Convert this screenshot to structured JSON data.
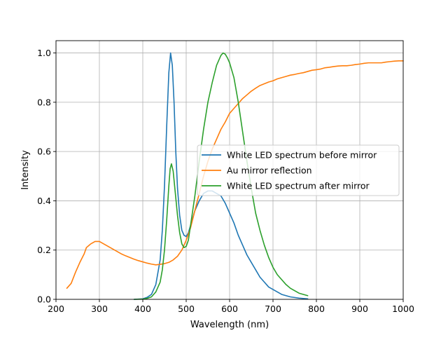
{
  "chart_data": {
    "type": "line",
    "title": "",
    "xlabel": "Wavelength (nm)",
    "ylabel": "Intensity",
    "xlim": [
      200,
      1000
    ],
    "ylim": [
      0,
      1.05
    ],
    "xticks": [
      200,
      300,
      400,
      500,
      600,
      700,
      800,
      900,
      1000
    ],
    "xtick_labels": [
      "200",
      "300",
      "400",
      "500",
      "600",
      "700",
      "800",
      "900",
      "1000"
    ],
    "yticks": [
      0,
      0.2,
      0.4,
      0.6,
      0.8,
      1.0
    ],
    "ytick_labels": [
      "0.0",
      "0.2",
      "0.4",
      "0.6",
      "0.8",
      "1.0"
    ],
    "grid": true,
    "legend_position": "center-right",
    "series": [
      {
        "name": "White LED spectrum before mirror",
        "color": "#1f77b4",
        "points": [
          [
            380,
            0
          ],
          [
            400,
            0.002
          ],
          [
            410,
            0.008
          ],
          [
            420,
            0.02
          ],
          [
            430,
            0.06
          ],
          [
            440,
            0.16
          ],
          [
            445,
            0.28
          ],
          [
            450,
            0.46
          ],
          [
            455,
            0.7
          ],
          [
            460,
            0.92
          ],
          [
            464,
            1.0
          ],
          [
            468,
            0.95
          ],
          [
            472,
            0.8
          ],
          [
            476,
            0.6
          ],
          [
            480,
            0.45
          ],
          [
            485,
            0.34
          ],
          [
            490,
            0.28
          ],
          [
            495,
            0.26
          ],
          [
            500,
            0.255
          ],
          [
            505,
            0.27
          ],
          [
            510,
            0.3
          ],
          [
            520,
            0.36
          ],
          [
            530,
            0.4
          ],
          [
            540,
            0.43
          ],
          [
            550,
            0.44
          ],
          [
            560,
            0.44
          ],
          [
            570,
            0.43
          ],
          [
            580,
            0.42
          ],
          [
            590,
            0.39
          ],
          [
            600,
            0.35
          ],
          [
            610,
            0.31
          ],
          [
            620,
            0.26
          ],
          [
            630,
            0.22
          ],
          [
            640,
            0.18
          ],
          [
            650,
            0.15
          ],
          [
            660,
            0.12
          ],
          [
            670,
            0.09
          ],
          [
            680,
            0.07
          ],
          [
            690,
            0.05
          ],
          [
            700,
            0.04
          ],
          [
            710,
            0.03
          ],
          [
            720,
            0.02
          ],
          [
            740,
            0.01
          ],
          [
            760,
            0.005
          ],
          [
            780,
            0.002
          ]
        ]
      },
      {
        "name": "Au mirror reflection",
        "color": "#ff7f0e",
        "points": [
          [
            225,
            0.045
          ],
          [
            235,
            0.065
          ],
          [
            245,
            0.11
          ],
          [
            255,
            0.15
          ],
          [
            265,
            0.185
          ],
          [
            270,
            0.21
          ],
          [
            280,
            0.225
          ],
          [
            290,
            0.235
          ],
          [
            300,
            0.235
          ],
          [
            310,
            0.225
          ],
          [
            320,
            0.215
          ],
          [
            330,
            0.205
          ],
          [
            340,
            0.195
          ],
          [
            350,
            0.185
          ],
          [
            360,
            0.177
          ],
          [
            370,
            0.17
          ],
          [
            380,
            0.163
          ],
          [
            390,
            0.157
          ],
          [
            400,
            0.152
          ],
          [
            410,
            0.147
          ],
          [
            420,
            0.143
          ],
          [
            430,
            0.14
          ],
          [
            440,
            0.142
          ],
          [
            450,
            0.145
          ],
          [
            460,
            0.15
          ],
          [
            470,
            0.16
          ],
          [
            480,
            0.175
          ],
          [
            490,
            0.2
          ],
          [
            500,
            0.24
          ],
          [
            510,
            0.29
          ],
          [
            520,
            0.36
          ],
          [
            530,
            0.43
          ],
          [
            540,
            0.5
          ],
          [
            550,
            0.56
          ],
          [
            560,
            0.61
          ],
          [
            570,
            0.65
          ],
          [
            580,
            0.69
          ],
          [
            590,
            0.72
          ],
          [
            600,
            0.755
          ],
          [
            610,
            0.775
          ],
          [
            620,
            0.795
          ],
          [
            630,
            0.815
          ],
          [
            640,
            0.83
          ],
          [
            650,
            0.845
          ],
          [
            660,
            0.857
          ],
          [
            670,
            0.868
          ],
          [
            680,
            0.875
          ],
          [
            690,
            0.882
          ],
          [
            700,
            0.887
          ],
          [
            710,
            0.895
          ],
          [
            720,
            0.9
          ],
          [
            730,
            0.905
          ],
          [
            740,
            0.91
          ],
          [
            750,
            0.913
          ],
          [
            760,
            0.917
          ],
          [
            770,
            0.92
          ],
          [
            780,
            0.925
          ],
          [
            790,
            0.93
          ],
          [
            800,
            0.932
          ],
          [
            810,
            0.935
          ],
          [
            820,
            0.94
          ],
          [
            830,
            0.942
          ],
          [
            840,
            0.945
          ],
          [
            850,
            0.947
          ],
          [
            860,
            0.948
          ],
          [
            870,
            0.948
          ],
          [
            880,
            0.95
          ],
          [
            890,
            0.953
          ],
          [
            900,
            0.955
          ],
          [
            910,
            0.958
          ],
          [
            920,
            0.96
          ],
          [
            930,
            0.96
          ],
          [
            940,
            0.96
          ],
          [
            950,
            0.96
          ],
          [
            960,
            0.963
          ],
          [
            970,
            0.965
          ],
          [
            980,
            0.967
          ],
          [
            990,
            0.968
          ],
          [
            1000,
            0.968
          ]
        ]
      },
      {
        "name": "White LED spectrum after mirror",
        "color": "#2ca02c",
        "points": [
          [
            380,
            0
          ],
          [
            400,
            0.001
          ],
          [
            410,
            0.004
          ],
          [
            420,
            0.01
          ],
          [
            430,
            0.03
          ],
          [
            440,
            0.07
          ],
          [
            445,
            0.12
          ],
          [
            450,
            0.2
          ],
          [
            455,
            0.32
          ],
          [
            460,
            0.46
          ],
          [
            463,
            0.53
          ],
          [
            466,
            0.55
          ],
          [
            470,
            0.52
          ],
          [
            475,
            0.43
          ],
          [
            480,
            0.34
          ],
          [
            485,
            0.27
          ],
          [
            490,
            0.225
          ],
          [
            495,
            0.21
          ],
          [
            500,
            0.215
          ],
          [
            505,
            0.24
          ],
          [
            510,
            0.3
          ],
          [
            520,
            0.42
          ],
          [
            530,
            0.56
          ],
          [
            540,
            0.69
          ],
          [
            550,
            0.8
          ],
          [
            560,
            0.88
          ],
          [
            570,
            0.95
          ],
          [
            580,
            0.99
          ],
          [
            585,
            1.0
          ],
          [
            590,
            0.995
          ],
          [
            595,
            0.98
          ],
          [
            600,
            0.96
          ],
          [
            610,
            0.9
          ],
          [
            620,
            0.8
          ],
          [
            630,
            0.68
          ],
          [
            640,
            0.56
          ],
          [
            650,
            0.45
          ],
          [
            660,
            0.35
          ],
          [
            670,
            0.28
          ],
          [
            680,
            0.22
          ],
          [
            690,
            0.17
          ],
          [
            700,
            0.13
          ],
          [
            710,
            0.1
          ],
          [
            720,
            0.08
          ],
          [
            730,
            0.06
          ],
          [
            740,
            0.045
          ],
          [
            750,
            0.035
          ],
          [
            760,
            0.025
          ],
          [
            770,
            0.02
          ],
          [
            780,
            0.015
          ]
        ]
      }
    ]
  }
}
